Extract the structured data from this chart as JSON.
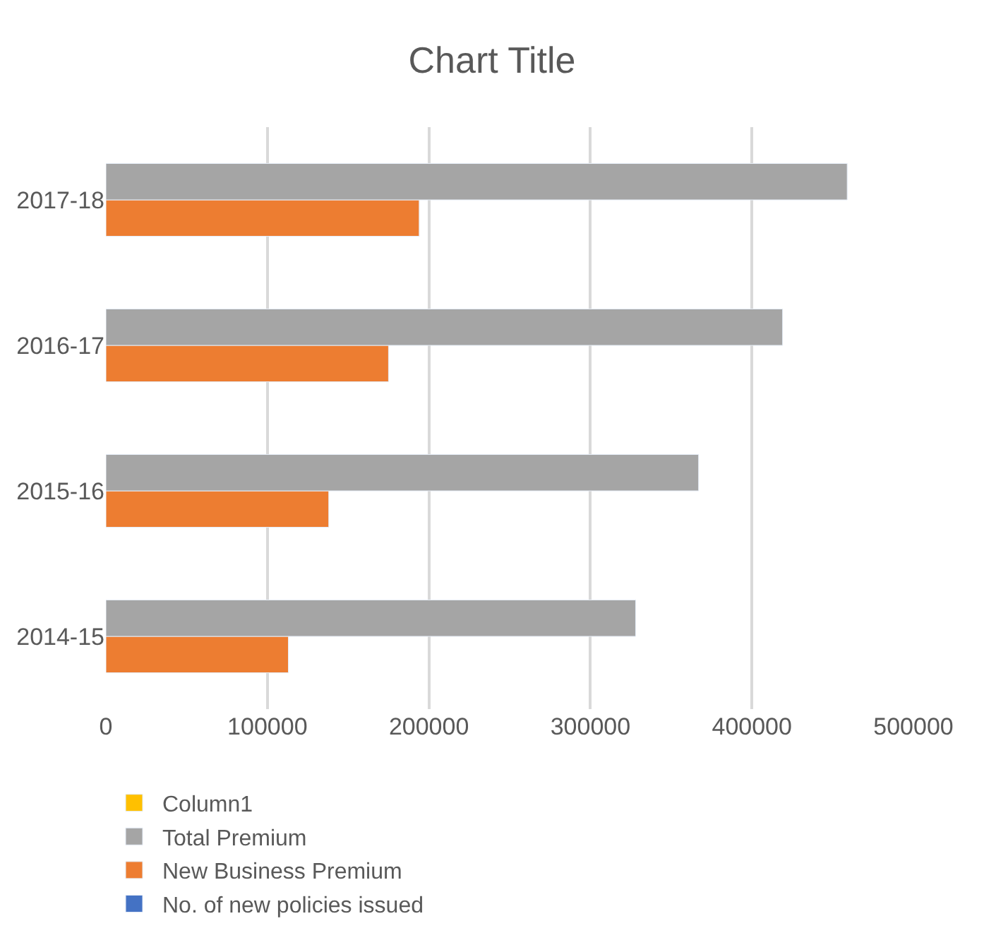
{
  "chart_data": {
    "type": "bar",
    "orientation": "horizontal",
    "title": "Chart Title",
    "categories": [
      "2017-18",
      "2016-17",
      "2015-16",
      "2014-15"
    ],
    "series": [
      {
        "name": "Column1",
        "color": "#ffc000",
        "values": [
          null,
          null,
          null,
          null
        ]
      },
      {
        "name": "Total Premium",
        "color": "#a5a5a5",
        "values": [
          459000,
          419000,
          367000,
          328000
        ]
      },
      {
        "name": "New Business Premium",
        "color": "#ed7d31",
        "values": [
          194000,
          175000,
          138000,
          113000
        ]
      },
      {
        "name": "No. of new policies issued",
        "color": "#4472c4",
        "values": [
          null,
          null,
          null,
          null
        ]
      }
    ],
    "xlim": [
      0,
      500000
    ],
    "xticks": [
      0,
      100000,
      200000,
      300000,
      400000,
      500000
    ],
    "grid": "x",
    "legend": "bottom"
  }
}
